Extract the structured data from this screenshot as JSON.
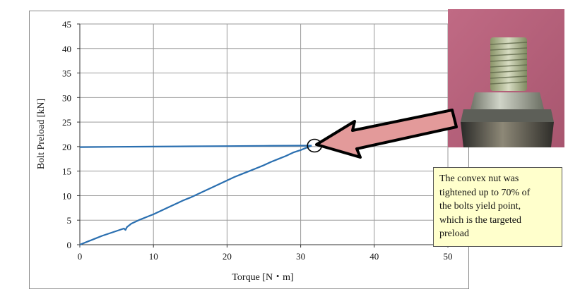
{
  "chart_data": {
    "type": "line",
    "xlabel": "Torque [N・m]",
    "ylabel": "Bolt Preload [kN]",
    "xlim": [
      0,
      50
    ],
    "ylim": [
      0,
      45
    ],
    "x_ticks": [
      0,
      10,
      20,
      30,
      40,
      50
    ],
    "y_ticks": [
      0,
      5,
      10,
      15,
      20,
      25,
      30,
      35,
      40,
      45
    ],
    "grid": true,
    "series": [
      {
        "color": "#2a6fb0",
        "x": [
          0,
          1,
          2,
          3,
          4,
          5,
          6,
          6.2,
          6.4,
          7,
          8,
          9,
          10,
          11,
          12,
          13,
          14,
          15,
          16,
          17,
          18,
          19,
          20,
          21,
          22,
          23,
          24,
          25,
          26,
          27,
          28,
          29,
          30,
          30.5,
          31,
          31.5
        ],
        "y": [
          0,
          0.6,
          1.2,
          1.8,
          2.3,
          2.8,
          3.3,
          3.0,
          3.6,
          4.3,
          5.0,
          5.6,
          6.2,
          6.9,
          7.6,
          8.3,
          9.0,
          9.6,
          10.3,
          11.0,
          11.7,
          12.4,
          13.1,
          13.8,
          14.4,
          15.0,
          15.6,
          16.2,
          16.9,
          17.5,
          18.1,
          18.8,
          19.3,
          19.6,
          19.9,
          20.2
        ]
      },
      {
        "color": "#2a6fb0",
        "x": [
          0,
          5,
          10,
          15,
          20,
          25,
          30,
          31.5
        ],
        "y": [
          19.9,
          19.95,
          20.0,
          20.05,
          20.1,
          20.15,
          20.2,
          20.2
        ]
      }
    ],
    "annotation": {
      "text": "The convex nut was tightened up to 70% of the bolts yield point, which is the targeted preload",
      "target": {
        "x": 31.5,
        "y": 20.2
      }
    }
  },
  "callout": {
    "lines": [
      "The convex nut was",
      "tightened up to 70% of",
      "the bolts yield point,",
      "which is the targeted",
      "preload"
    ]
  },
  "photo": {
    "icon": "bolt-and-convex-nut-photo",
    "background": "#b5637c"
  },
  "arrow": {
    "fill": "#e39a9a",
    "stroke": "#000000"
  }
}
